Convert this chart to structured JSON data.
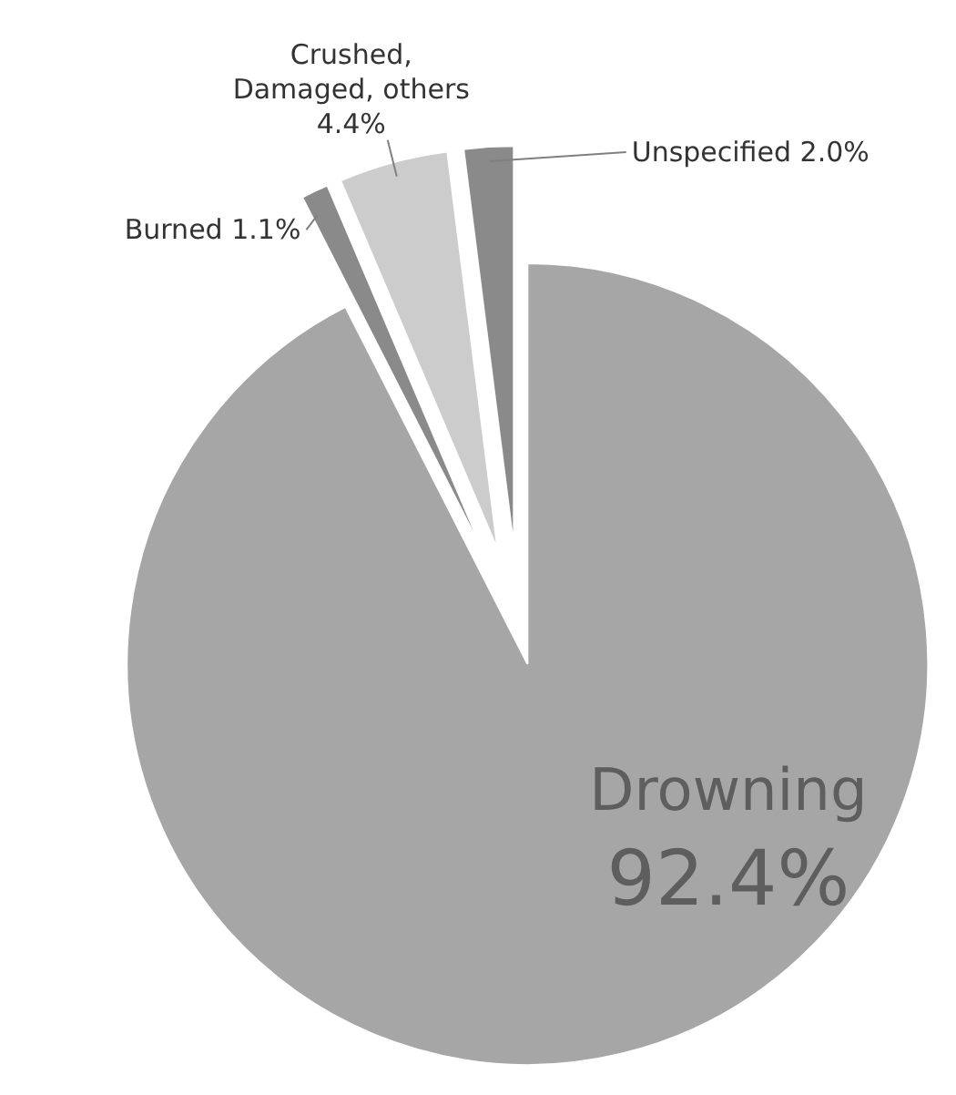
{
  "chart_data": {
    "type": "pie",
    "categories": [
      "Drowning",
      "Burned",
      "Crushed, Damaged, others",
      "Unspecified"
    ],
    "values": [
      92.4,
      1.1,
      4.4,
      2.0
    ],
    "value_labels": [
      "92.4%",
      "1.1%",
      "4.4%",
      "2.0%"
    ],
    "colors": [
      "#a6a6a6",
      "#8a8a8a",
      "#cccccc",
      "#8a8a8a"
    ]
  }
}
